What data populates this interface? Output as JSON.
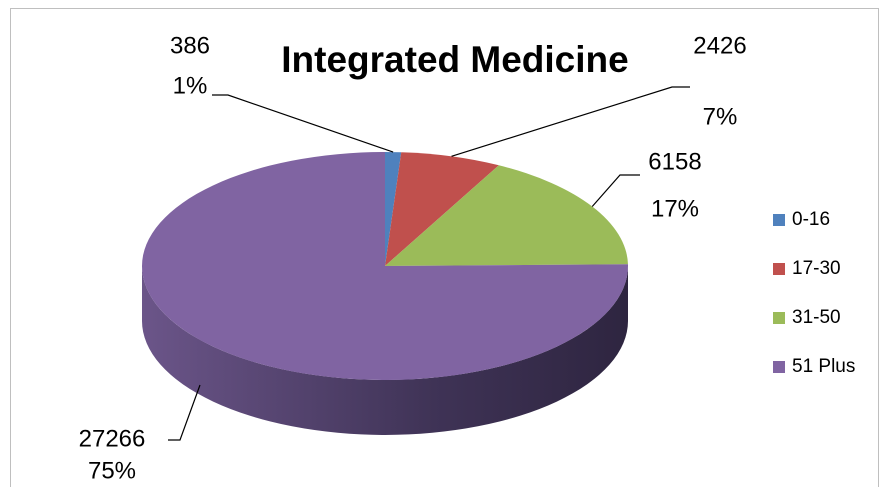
{
  "chart_data": {
    "type": "pie",
    "title": "Integrated Medicine",
    "categories": [
      "0-16",
      "17-30",
      "31-50",
      "51 Plus"
    ],
    "values": [
      386,
      2426,
      6158,
      27266
    ],
    "percent_labels": [
      "1%",
      "7%",
      "17%",
      "75%"
    ],
    "colors": [
      "#4f81bd",
      "#c0504d",
      "#9bbb59",
      "#8064a2"
    ],
    "legend": "right"
  }
}
